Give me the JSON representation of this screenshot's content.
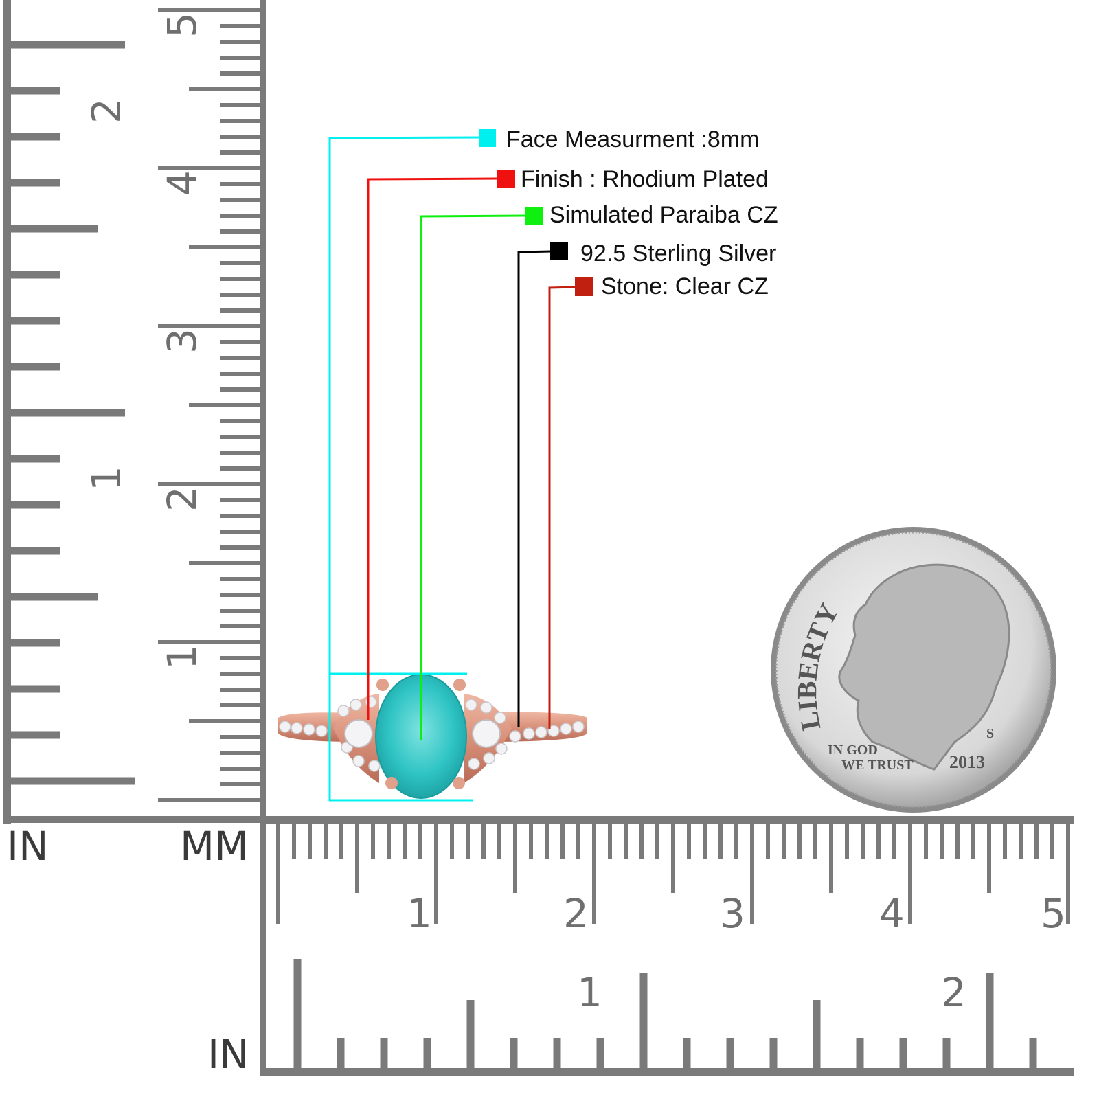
{
  "callouts": [
    {
      "label": "Face Measurment :8mm",
      "color": "#00f0f0"
    },
    {
      "label": "Finish : Rhodium Plated",
      "color": "#f01010"
    },
    {
      "label": "Simulated Paraiba CZ",
      "color": "#10f010"
    },
    {
      "label": "92.5 Sterling Silver",
      "color": "#000000"
    },
    {
      "label": "Stone: Clear CZ",
      "color": "#c0200f"
    }
  ],
  "ruler": {
    "color": "#7a7a7a",
    "left_unit_top": "IN",
    "left_unit_mm": "MM",
    "bottom_unit": "IN",
    "vertical_inch_labels": [
      "1",
      "2"
    ],
    "vertical_cm_labels": [
      "1",
      "2",
      "3",
      "4",
      "5"
    ],
    "horizontal_cm_labels": [
      "1",
      "2",
      "3",
      "4",
      "5"
    ],
    "horizontal_inch_labels": [
      "1",
      "2"
    ]
  },
  "product": {
    "metal_color": "#d9917a",
    "gem_color": "#2fc4c4",
    "gem_shape": "oval"
  },
  "coin": {
    "liberty": "LIBERTY",
    "motto_1": "IN GOD",
    "motto_2": "WE TRUST",
    "year": "2013",
    "mint_mark": "S"
  }
}
